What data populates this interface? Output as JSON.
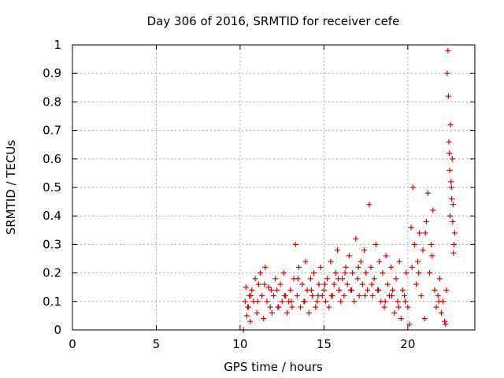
{
  "chart_data": {
    "type": "scatter",
    "title": "Day 306 of 2016, SRMTID for receiver cefe",
    "xlabel": "GPS time / hours",
    "ylabel": "SRMTID / TECUs",
    "xlim": [
      0,
      24
    ],
    "ylim": [
      0,
      1
    ],
    "xticks": [
      0,
      5,
      10,
      15,
      20
    ],
    "yticks": [
      0,
      0.1,
      0.2,
      0.3,
      0.4,
      0.5,
      0.6,
      0.7,
      0.8,
      0.9,
      1
    ],
    "grid": true,
    "marker": "+",
    "series": [
      {
        "name": "SRMTID",
        "x": [
          10.2,
          10.3,
          10.35,
          10.4,
          10.5,
          10.55,
          10.6,
          10.7,
          10.8,
          10.9,
          11.0,
          11.1,
          11.2,
          11.3,
          11.4,
          11.5,
          11.6,
          11.7,
          11.8,
          11.9,
          12.0,
          12.1,
          12.2,
          12.3,
          12.4,
          12.5,
          12.6,
          12.7,
          12.8,
          12.9,
          13.0,
          13.1,
          13.2,
          13.3,
          13.4,
          13.5,
          13.6,
          13.7,
          13.8,
          13.9,
          14.0,
          14.1,
          14.2,
          14.3,
          14.4,
          14.5,
          14.6,
          14.7,
          14.8,
          14.9,
          15.0,
          15.1,
          15.2,
          15.3,
          15.4,
          15.5,
          15.6,
          15.7,
          15.8,
          15.9,
          16.0,
          16.1,
          16.2,
          16.3,
          16.4,
          16.5,
          16.6,
          16.7,
          16.8,
          16.9,
          17.0,
          17.1,
          17.2,
          17.3,
          17.4,
          17.5,
          17.6,
          17.7,
          17.8,
          17.9,
          18.0,
          18.1,
          18.2,
          18.3,
          18.4,
          18.5,
          18.6,
          18.7,
          18.8,
          18.9,
          19.0,
          19.1,
          19.2,
          19.3,
          19.4,
          19.5,
          19.6,
          19.7,
          19.8,
          19.9,
          20.0,
          20.1,
          20.2,
          20.3,
          20.4,
          20.5,
          20.6,
          20.7,
          20.8,
          20.9,
          21.0,
          21.1,
          21.2,
          21.3,
          21.4,
          21.5,
          21.6,
          21.7,
          21.8,
          21.9,
          22.0,
          22.1,
          22.2,
          22.3,
          22.35,
          22.4,
          22.45,
          22.5,
          22.55,
          22.6,
          22.65,
          22.7,
          22.75,
          22.8,
          10.45,
          10.65,
          11.05,
          11.45,
          11.85,
          12.25,
          12.65,
          13.05,
          13.45,
          13.85,
          14.25,
          14.65,
          15.05,
          15.45,
          15.85,
          16.25,
          16.65,
          17.05,
          17.45,
          17.85,
          18.25,
          18.65,
          19.05,
          19.45,
          19.85,
          20.25,
          20.65,
          21.05,
          21.45,
          21.85,
          22.25,
          22.42,
          22.48,
          22.52,
          22.58,
          22.62,
          22.68,
          22.72
        ],
        "y": [
          0.0,
          0.1,
          0.15,
          0.05,
          0.08,
          0.12,
          0.03,
          0.14,
          0.1,
          0.18,
          0.06,
          0.16,
          0.2,
          0.12,
          0.04,
          0.22,
          0.1,
          0.15,
          0.08,
          0.06,
          0.12,
          0.18,
          0.14,
          0.08,
          0.16,
          0.1,
          0.2,
          0.12,
          0.06,
          0.1,
          0.14,
          0.08,
          0.18,
          0.3,
          0.12,
          0.22,
          0.08,
          0.16,
          0.1,
          0.24,
          0.14,
          0.06,
          0.18,
          0.12,
          0.2,
          0.08,
          0.1,
          0.16,
          0.22,
          0.12,
          0.14,
          0.1,
          0.18,
          0.08,
          0.24,
          0.12,
          0.16,
          0.2,
          0.28,
          0.14,
          0.1,
          0.18,
          0.12,
          0.22,
          0.16,
          0.26,
          0.14,
          0.2,
          0.1,
          0.32,
          0.18,
          0.12,
          0.24,
          0.16,
          0.28,
          0.2,
          0.14,
          0.44,
          0.22,
          0.12,
          0.18,
          0.3,
          0.14,
          0.24,
          0.1,
          0.2,
          0.08,
          0.26,
          0.16,
          0.12,
          0.22,
          0.14,
          0.06,
          0.18,
          0.1,
          0.24,
          0.04,
          0.14,
          0.12,
          0.2,
          0.08,
          0.02,
          0.36,
          0.5,
          0.3,
          0.16,
          0.24,
          0.34,
          0.12,
          0.28,
          0.04,
          0.38,
          0.48,
          0.2,
          0.3,
          0.42,
          0.14,
          0.08,
          0.12,
          0.18,
          0.06,
          0.1,
          0.03,
          0.14,
          0.9,
          0.98,
          0.66,
          0.56,
          0.72,
          0.5,
          0.6,
          0.44,
          0.3,
          0.34,
          0.08,
          0.12,
          0.1,
          0.16,
          0.14,
          0.08,
          0.12,
          0.1,
          0.18,
          0.1,
          0.14,
          0.12,
          0.16,
          0.12,
          0.18,
          0.2,
          0.14,
          0.22,
          0.12,
          0.16,
          0.14,
          0.1,
          0.12,
          0.08,
          0.1,
          0.22,
          0.2,
          0.34,
          0.26,
          0.1,
          0.02,
          0.82,
          0.62,
          0.4,
          0.52,
          0.46,
          0.38,
          0.27
        ]
      }
    ]
  },
  "colors": {
    "marker": "#dd0000",
    "grid": "#aaaaaa",
    "axis": "#000000"
  }
}
